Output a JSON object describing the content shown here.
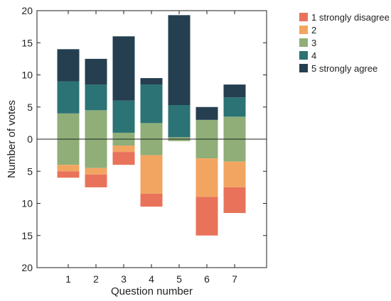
{
  "chart_data": {
    "type": "bar",
    "subtype": "diverging-stacked",
    "xlabel": "Question number",
    "ylabel": "Number of votes",
    "categories": [
      "1",
      "2",
      "3",
      "4",
      "5",
      "6",
      "7"
    ],
    "ylim": [
      -20,
      20
    ],
    "yticks": [
      20,
      15,
      10,
      5,
      0,
      5,
      10,
      15,
      20
    ],
    "grid": false,
    "legend_position": "top-right",
    "neutral_split": "half above and half below zero",
    "series": [
      {
        "name": "1 strongly disagree",
        "color": "#e8735a",
        "direction": "negative",
        "values": [
          1,
          2,
          2,
          2,
          0,
          6,
          4
        ]
      },
      {
        "name": "2",
        "color": "#f2a561",
        "direction": "negative",
        "values": [
          1,
          1,
          1,
          6,
          0,
          6,
          4
        ]
      },
      {
        "name": "3",
        "color": "#8fae78",
        "direction": "split",
        "values": [
          8,
          9,
          2,
          5,
          0.6,
          6,
          7
        ]
      },
      {
        "name": "4",
        "color": "#2b7374",
        "direction": "positive",
        "values": [
          5,
          4,
          5,
          6,
          5,
          0,
          3
        ]
      },
      {
        "name": "5 strongly agree",
        "color": "#253f50",
        "direction": "positive",
        "values": [
          5,
          4,
          10,
          1,
          14,
          2,
          2
        ]
      }
    ]
  }
}
